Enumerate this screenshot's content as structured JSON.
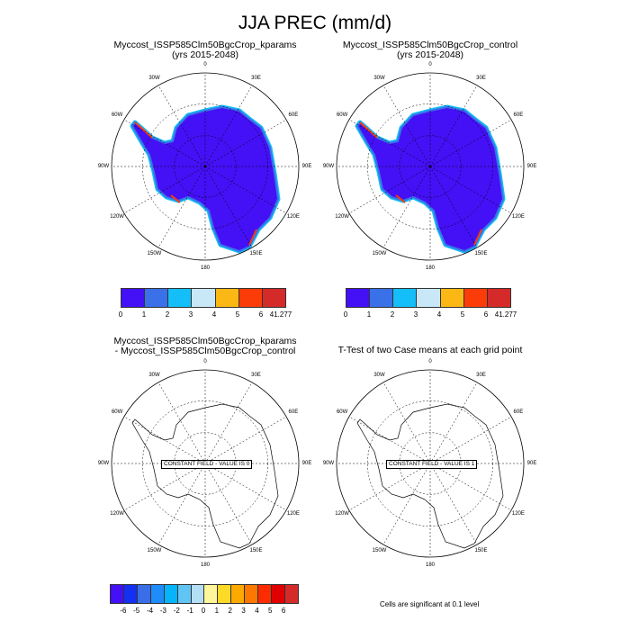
{
  "title": "JJA PREC (mm/d)",
  "chart_data": [
    {
      "type": "heatmap",
      "title": "Myccost_ISSP585Clm50BgcCrop_kparams",
      "subtitle": "(yrs 2015-2048)",
      "projection": "south-polar-stereographic",
      "lon_labels": [
        "0",
        "30E",
        "60E",
        "90E",
        "120E",
        "150E",
        "180",
        "150W",
        "120W",
        "90W",
        "60W",
        "30W"
      ],
      "colorbar": {
        "labels": [
          "0",
          "1",
          "2",
          "3",
          "4",
          "5",
          "6",
          "41.277"
        ],
        "colors": [
          "#4410f5",
          "#3a70e8",
          "#14bef8",
          "#c8e8f8",
          "#fbb814",
          "#fc3c08",
          "#d42a2a"
        ]
      }
    },
    {
      "type": "heatmap",
      "title": "Myccost_ISSP585Clm50BgcCrop_control",
      "subtitle": "(yrs 2015-2048)",
      "projection": "south-polar-stereographic",
      "lon_labels": [
        "0",
        "30E",
        "60E",
        "90E",
        "120E",
        "150E",
        "180",
        "150W",
        "120W",
        "90W",
        "60W",
        "30W"
      ],
      "colorbar": {
        "labels": [
          "0",
          "1",
          "2",
          "3",
          "4",
          "5",
          "6",
          "41.277"
        ],
        "colors": [
          "#4410f5",
          "#3a70e8",
          "#14bef8",
          "#c8e8f8",
          "#fbb814",
          "#fc3c08",
          "#d42a2a"
        ]
      }
    },
    {
      "type": "heatmap",
      "title": "Myccost_ISSP585Clm50BgcCrop_kparams",
      "subtitle": "- Myccost_ISSP585Clm50BgcCrop_control",
      "projection": "south-polar-stereographic",
      "lon_labels": [
        "0",
        "30E",
        "60E",
        "90E",
        "120E",
        "150E",
        "180",
        "150W",
        "120W",
        "90W",
        "60W",
        "30W"
      ],
      "annotation": "CONSTANT FIELD - VALUE IS 0"
    },
    {
      "type": "heatmap",
      "title": "T-Test of two Case means at each grid point",
      "subtitle": "",
      "projection": "south-polar-stereographic",
      "lon_labels": [
        "0",
        "30E",
        "60E",
        "90E",
        "120E",
        "150E",
        "180",
        "150W",
        "120W",
        "90W",
        "60W",
        "30W"
      ],
      "annotation": "CONSTANT FIELD - VALUE IS 1"
    }
  ],
  "diff_colorbar": {
    "labels": [
      "-6",
      "-5",
      "-4",
      "-3",
      "-2",
      "-1",
      "0",
      "1",
      "2",
      "3",
      "4",
      "5",
      "6"
    ],
    "colors": [
      "#4410f5",
      "#1430f0",
      "#3a6ee6",
      "#1e8cfa",
      "#06b4fc",
      "#60c4f4",
      "#b4def4",
      "#fff69c",
      "#fcda28",
      "#fcaa00",
      "#fc7800",
      "#fc2c00",
      "#e00000",
      "#d42a2a"
    ]
  },
  "note": "Cells are significant at 0.1 level"
}
